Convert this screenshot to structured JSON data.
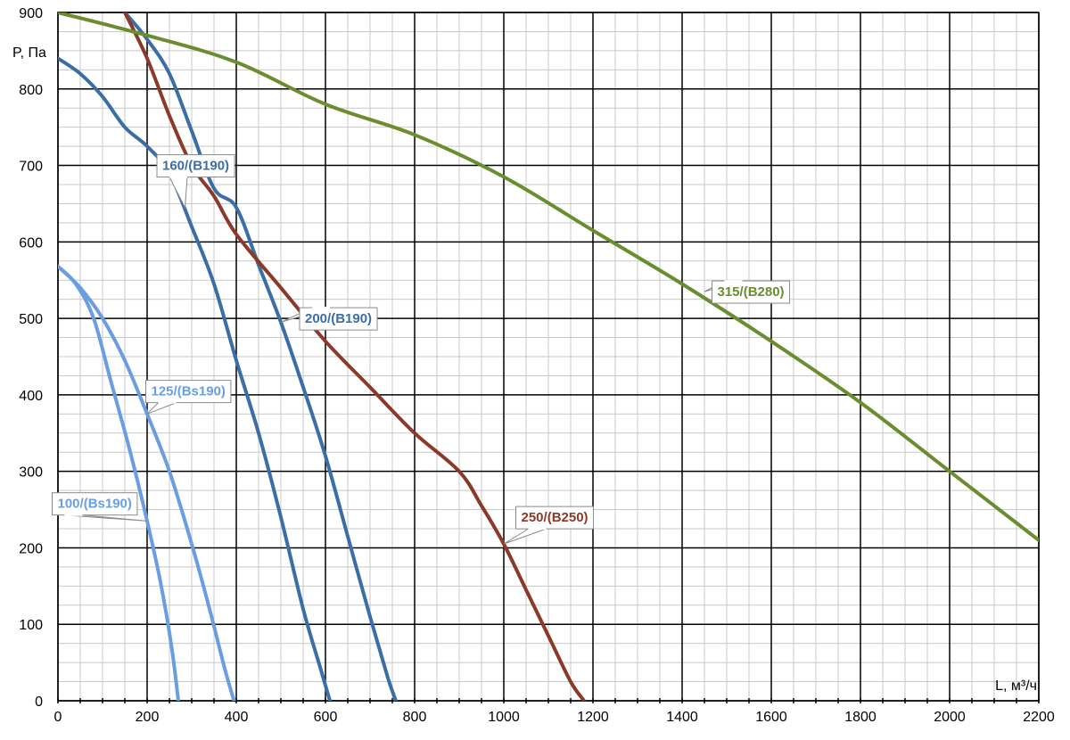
{
  "chart_data": {
    "type": "line",
    "xlabel": "L, м³/ч",
    "ylabel": "P, Па",
    "xlim": [
      0,
      2200
    ],
    "ylim": [
      0,
      900
    ],
    "x_ticks": [
      0,
      200,
      400,
      600,
      800,
      1000,
      1200,
      1400,
      1600,
      1800,
      2000,
      2200
    ],
    "y_ticks": [
      0,
      100,
      200,
      300,
      400,
      500,
      600,
      700,
      800,
      900
    ],
    "grid": true,
    "series": [
      {
        "name": "100/(Bs190)",
        "color": "#6a9ee0",
        "label_at": [
          200,
          235
        ],
        "points": [
          [
            0,
            568
          ],
          [
            40,
            545
          ],
          [
            80,
            500
          ],
          [
            120,
            415
          ],
          [
            160,
            330
          ],
          [
            200,
            235
          ],
          [
            230,
            155
          ],
          [
            255,
            70
          ],
          [
            270,
            0
          ]
        ]
      },
      {
        "name": "125/(Bs190)",
        "color": "#6a9ee0",
        "label_at": [
          200,
          375
        ],
        "points": [
          [
            0,
            568
          ],
          [
            50,
            540
          ],
          [
            100,
            500
          ],
          [
            150,
            445
          ],
          [
            200,
            375
          ],
          [
            250,
            300
          ],
          [
            300,
            205
          ],
          [
            340,
            120
          ],
          [
            375,
            40
          ],
          [
            395,
            0
          ]
        ]
      },
      {
        "name": "160/(B190)",
        "color": "#3a6ea5",
        "label_at": [
          285,
          645
        ],
        "points": [
          [
            0,
            840
          ],
          [
            50,
            820
          ],
          [
            100,
            790
          ],
          [
            150,
            750
          ],
          [
            200,
            725
          ],
          [
            250,
            690
          ],
          [
            300,
            620
          ],
          [
            350,
            545
          ],
          [
            400,
            445
          ],
          [
            450,
            350
          ],
          [
            500,
            240
          ],
          [
            550,
            120
          ],
          [
            590,
            40
          ],
          [
            610,
            0
          ]
        ]
      },
      {
        "name": "200/(B190)",
        "color": "#3a6ea5",
        "label_at": [
          500,
          495
        ],
        "points": [
          [
            150,
            900
          ],
          [
            200,
            865
          ],
          [
            250,
            820
          ],
          [
            300,
            745
          ],
          [
            350,
            670
          ],
          [
            400,
            645
          ],
          [
            450,
            570
          ],
          [
            500,
            495
          ],
          [
            550,
            410
          ],
          [
            600,
            320
          ],
          [
            650,
            215
          ],
          [
            700,
            110
          ],
          [
            740,
            30
          ],
          [
            758,
            0
          ]
        ]
      },
      {
        "name": "250/(B250)",
        "color": "#8b3a2a",
        "label_at": [
          1000,
          205
        ],
        "points": [
          [
            150,
            900
          ],
          [
            200,
            840
          ],
          [
            250,
            765
          ],
          [
            300,
            700
          ],
          [
            350,
            660
          ],
          [
            400,
            610
          ],
          [
            500,
            540
          ],
          [
            600,
            470
          ],
          [
            700,
            410
          ],
          [
            800,
            350
          ],
          [
            900,
            300
          ],
          [
            950,
            255
          ],
          [
            1000,
            205
          ],
          [
            1050,
            145
          ],
          [
            1100,
            85
          ],
          [
            1150,
            25
          ],
          [
            1180,
            0
          ]
        ]
      },
      {
        "name": "315/(B280)",
        "color": "#6b8c2f",
        "label_at": [
          1450,
          535
        ],
        "points": [
          [
            0,
            900
          ],
          [
            200,
            870
          ],
          [
            400,
            835
          ],
          [
            600,
            780
          ],
          [
            800,
            740
          ],
          [
            1000,
            685
          ],
          [
            1200,
            615
          ],
          [
            1400,
            545
          ],
          [
            1600,
            470
          ],
          [
            1800,
            390
          ],
          [
            2000,
            300
          ],
          [
            2200,
            210
          ]
        ]
      }
    ],
    "callouts": [
      {
        "series": "160/(B190)",
        "text": "160/(B190)",
        "text_color": "#3a6ea5",
        "box_at": [
          220,
          700
        ]
      },
      {
        "series": "200/(B190)",
        "text": "200/(B190)",
        "text_color": "#3a6ea5",
        "box_at": [
          540,
          500
        ]
      },
      {
        "series": "125/(Bs190)",
        "text": "125/(Bs190)",
        "text_color": "#6a9ee0",
        "box_at": [
          195,
          405
        ]
      },
      {
        "series": "100/(Bs190)",
        "text": "100/(Bs190)",
        "text_color": "#6a9ee0",
        "box_at": [
          -15,
          258
        ]
      },
      {
        "series": "250/(B250)",
        "text": "250/(B250)",
        "text_color": "#8b3a2a",
        "box_at": [
          1025,
          240
        ]
      },
      {
        "series": "315/(B280)",
        "text": "315/(B280)",
        "text_color": "#6b8c2f",
        "box_at": [
          1465,
          535
        ]
      }
    ]
  }
}
